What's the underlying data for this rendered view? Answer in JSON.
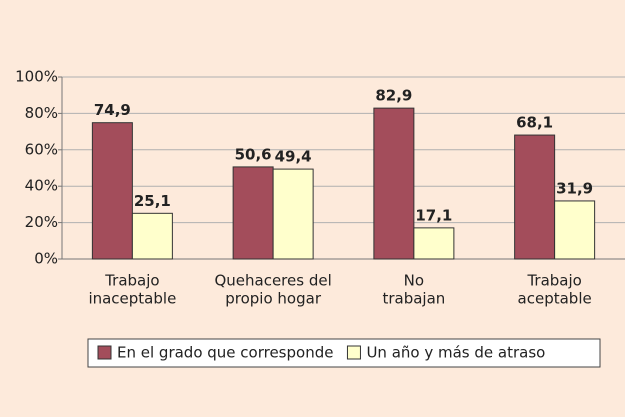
{
  "chart_data": {
    "type": "bar",
    "categories": [
      [
        "Trabajo",
        "inaceptable"
      ],
      [
        "Quehaceres del",
        "propio hogar"
      ],
      [
        "No",
        "trabajan"
      ],
      [
        "Trabajo",
        "aceptable"
      ]
    ],
    "series": [
      {
        "name": "En el grado que corresponde",
        "color": "#a34d5b",
        "values": [
          74.9,
          50.6,
          82.9,
          68.1
        ],
        "value_labels": [
          "74,9",
          "50,6",
          "82,9",
          "68,1"
        ]
      },
      {
        "name": "Un año y más de atraso",
        "color": "#ffffcc",
        "values": [
          25.1,
          49.4,
          17.1,
          31.9
        ],
        "value_labels": [
          "25,1",
          "49,4",
          "17,1",
          "31,9"
        ]
      }
    ],
    "ylim": [
      0,
      100
    ],
    "yticks": [
      {
        "value": 0,
        "label": "0%"
      },
      {
        "value": 20,
        "label": "20%"
      },
      {
        "value": 40,
        "label": "40%"
      },
      {
        "value": 60,
        "label": "60%"
      },
      {
        "value": 80,
        "label": "80%"
      },
      {
        "value": 100,
        "label": "100%"
      }
    ],
    "grid": true,
    "legend": "bottom"
  }
}
